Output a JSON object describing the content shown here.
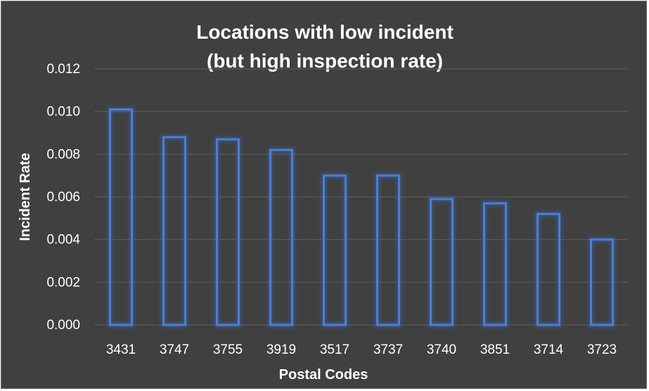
{
  "chart_data": {
    "type": "bar",
    "title": [
      "Locations with low incident",
      "(but high inspection rate)"
    ],
    "xlabel": "Postal Codes",
    "ylabel": "Incident Rate",
    "categories": [
      "3431",
      "3747",
      "3755",
      "3919",
      "3517",
      "3737",
      "3740",
      "3851",
      "3714",
      "3723"
    ],
    "values": [
      0.0101,
      0.0088,
      0.0087,
      0.0082,
      0.007,
      0.007,
      0.0059,
      0.0057,
      0.0052,
      0.004
    ],
    "ylim": [
      0,
      0.012
    ],
    "yticks": [
      "0.000",
      "0.002",
      "0.004",
      "0.006",
      "0.008",
      "0.010",
      "0.012"
    ],
    "grid": true,
    "legend": "none",
    "colors": {
      "background": "#404040",
      "bar_outline": "#4a7fd6",
      "text": "#ffffff",
      "grid": "#5e5e5e"
    }
  }
}
